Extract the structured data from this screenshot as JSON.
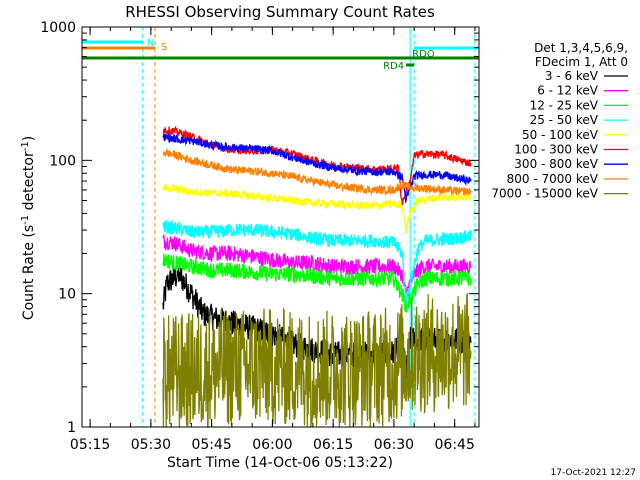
{
  "chart_data": {
    "type": "line",
    "title": "RHESSI Observing Summary Count Rates",
    "xlabel": "Start Time (14-Oct-06 05:13:22)",
    "ylabel_main": "Count Rate (s",
    "ylabel_sup1": "-1",
    "ylabel_mid": " detector",
    "ylabel_sup2": "-1",
    "ylabel_end": ")",
    "y_scale": "log",
    "ylim": [
      1,
      1000
    ],
    "xlim": [
      "05:13",
      "06:51"
    ],
    "x_ticks": [
      {
        "t": "05:15",
        "label": "05:15"
      },
      {
        "t": "05:30",
        "label": "05:30"
      },
      {
        "t": "05:45",
        "label": "05:45"
      },
      {
        "t": "06:00",
        "label": "06:00"
      },
      {
        "t": "06:15",
        "label": "06:15"
      },
      {
        "t": "06:30",
        "label": "06:30"
      },
      {
        "t": "06:45",
        "label": "06:45"
      }
    ],
    "y_ticks": [
      {
        "v": 1,
        "label": "1"
      },
      {
        "v": 10,
        "label": "10"
      },
      {
        "v": 100,
        "label": "100"
      },
      {
        "v": 1000,
        "label": "1000"
      }
    ],
    "legend": {
      "header": [
        "Det 1,3,4,5,6,9,",
        "FDecim 1, Att 0"
      ],
      "placement": "right"
    },
    "series": [
      {
        "name": "3 - 6 keV",
        "color": "#000000",
        "noise": 0.1,
        "points": [
          [
            "05:33",
            8
          ],
          [
            "05:34",
            12
          ],
          [
            "05:37",
            14
          ],
          [
            "05:40",
            10
          ],
          [
            "05:43",
            7
          ],
          [
            "05:46",
            6.5
          ],
          [
            "05:50",
            6
          ],
          [
            "05:55",
            5.5
          ],
          [
            "06:00",
            5
          ],
          [
            "06:05",
            4.2
          ],
          [
            "06:10",
            3.8
          ],
          [
            "06:15",
            3.5
          ],
          [
            "06:20",
            3.5
          ],
          [
            "06:25",
            3.5
          ],
          [
            "06:30",
            3.6
          ],
          [
            "06:32",
            4
          ],
          [
            "06:33",
            2.5
          ],
          [
            "06:34",
            4.5
          ],
          [
            "06:37",
            4.5
          ],
          [
            "06:45",
            4.5
          ],
          [
            "06:49",
            4.3
          ]
        ]
      },
      {
        "name": "6 - 12 keV",
        "color": "#ff00ff",
        "noise": 0.06,
        "points": [
          [
            "05:33",
            25
          ],
          [
            "05:36",
            24
          ],
          [
            "05:40",
            21
          ],
          [
            "05:45",
            20
          ],
          [
            "05:50",
            20
          ],
          [
            "05:55",
            19
          ],
          [
            "06:00",
            18
          ],
          [
            "06:05",
            17
          ],
          [
            "06:10",
            17
          ],
          [
            "06:15",
            16
          ],
          [
            "06:20",
            16
          ],
          [
            "06:25",
            16
          ],
          [
            "06:30",
            16
          ],
          [
            "06:32",
            14
          ],
          [
            "06:33",
            10
          ],
          [
            "06:35",
            14
          ],
          [
            "06:37",
            16
          ],
          [
            "06:45",
            16
          ],
          [
            "06:49",
            16
          ]
        ]
      },
      {
        "name": "12 - 25 keV",
        "color": "#00ff00",
        "noise": 0.06,
        "points": [
          [
            "05:33",
            18
          ],
          [
            "05:36",
            17
          ],
          [
            "05:40",
            16
          ],
          [
            "05:45",
            15
          ],
          [
            "05:50",
            15
          ],
          [
            "05:55",
            14.5
          ],
          [
            "06:00",
            14
          ],
          [
            "06:05",
            14
          ],
          [
            "06:10",
            13.5
          ],
          [
            "06:15",
            13
          ],
          [
            "06:20",
            13
          ],
          [
            "06:25",
            13
          ],
          [
            "06:30",
            13
          ],
          [
            "06:32",
            10
          ],
          [
            "06:33",
            8
          ],
          [
            "06:34",
            9
          ],
          [
            "06:36",
            12
          ],
          [
            "06:38",
            13
          ],
          [
            "06:45",
            13
          ],
          [
            "06:49",
            13
          ]
        ]
      },
      {
        "name": "25 - 50 keV",
        "color": "#00ffff",
        "noise": 0.05,
        "points": [
          [
            "05:33",
            32
          ],
          [
            "05:36",
            31
          ],
          [
            "05:40",
            29
          ],
          [
            "05:45",
            29
          ],
          [
            "05:50",
            30
          ],
          [
            "05:55",
            30
          ],
          [
            "06:00",
            29
          ],
          [
            "06:05",
            28
          ],
          [
            "06:10",
            26
          ],
          [
            "06:15",
            25
          ],
          [
            "06:20",
            25
          ],
          [
            "06:25",
            25
          ],
          [
            "06:30",
            24
          ],
          [
            "06:32",
            20
          ],
          [
            "06:33",
            9
          ],
          [
            "06:34",
            12
          ],
          [
            "06:36",
            22
          ],
          [
            "06:38",
            25
          ],
          [
            "06:45",
            26
          ],
          [
            "06:49",
            27
          ]
        ]
      },
      {
        "name": "50 - 100 keV",
        "color": "#ffff00",
        "noise": 0.03,
        "points": [
          [
            "05:33",
            62
          ],
          [
            "05:36",
            61
          ],
          [
            "05:40",
            58
          ],
          [
            "05:45",
            57
          ],
          [
            "05:50",
            56
          ],
          [
            "05:55",
            54
          ],
          [
            "06:00",
            52
          ],
          [
            "06:05",
            50
          ],
          [
            "06:10",
            48
          ],
          [
            "06:15",
            47
          ],
          [
            "06:20",
            46
          ],
          [
            "06:25",
            46
          ],
          [
            "06:30",
            47
          ],
          [
            "06:32",
            46
          ],
          [
            "06:33",
            30
          ],
          [
            "06:34",
            40
          ],
          [
            "06:36",
            50
          ],
          [
            "06:40",
            52
          ],
          [
            "06:45",
            53
          ],
          [
            "06:49",
            53
          ]
        ]
      },
      {
        "name": "100 - 300 keV",
        "color": "#ff0000",
        "noise": 0.03,
        "points": [
          [
            "05:33",
            170
          ],
          [
            "05:36",
            165
          ],
          [
            "05:40",
            150
          ],
          [
            "05:45",
            130
          ],
          [
            "05:50",
            120
          ],
          [
            "05:55",
            118
          ],
          [
            "06:00",
            120
          ],
          [
            "06:05",
            112
          ],
          [
            "06:10",
            100
          ],
          [
            "06:15",
            92
          ],
          [
            "06:20",
            88
          ],
          [
            "06:25",
            86
          ],
          [
            "06:30",
            86
          ],
          [
            "06:31",
            92
          ],
          [
            "06:32",
            48
          ],
          [
            "06:34",
            70
          ],
          [
            "06:35",
            108
          ],
          [
            "06:37",
            112
          ],
          [
            "06:42",
            110
          ],
          [
            "06:45",
            103
          ],
          [
            "06:49",
            95
          ]
        ]
      },
      {
        "name": "300 - 800 keV",
        "color": "#0000ff",
        "noise": 0.03,
        "points": [
          [
            "05:33",
            150
          ],
          [
            "05:36",
            145
          ],
          [
            "05:40",
            140
          ],
          [
            "05:45",
            130
          ],
          [
            "05:50",
            125
          ],
          [
            "05:55",
            122
          ],
          [
            "06:00",
            118
          ],
          [
            "06:05",
            105
          ],
          [
            "06:10",
            95
          ],
          [
            "06:15",
            88
          ],
          [
            "06:20",
            84
          ],
          [
            "06:25",
            82
          ],
          [
            "06:30",
            82
          ],
          [
            "06:32",
            75
          ],
          [
            "06:33",
            50
          ],
          [
            "06:35",
            76
          ],
          [
            "06:37",
            78
          ],
          [
            "06:42",
            78
          ],
          [
            "06:45",
            74
          ],
          [
            "06:49",
            70
          ]
        ]
      },
      {
        "name": "800 - 7000 keV",
        "color": "#ff8000",
        "noise": 0.03,
        "points": [
          [
            "05:33",
            115
          ],
          [
            "05:36",
            110
          ],
          [
            "05:40",
            100
          ],
          [
            "05:45",
            92
          ],
          [
            "05:50",
            85
          ],
          [
            "05:55",
            83
          ],
          [
            "06:00",
            80
          ],
          [
            "06:05",
            75
          ],
          [
            "06:10",
            70
          ],
          [
            "06:15",
            65
          ],
          [
            "06:20",
            62
          ],
          [
            "06:25",
            60
          ],
          [
            "06:30",
            60
          ],
          [
            "06:32",
            65
          ],
          [
            "06:33",
            64
          ],
          [
            "06:35",
            62
          ],
          [
            "06:37",
            62
          ],
          [
            "06:42",
            60
          ],
          [
            "06:45",
            59
          ],
          [
            "06:49",
            58
          ]
        ]
      },
      {
        "name": "7000 - 15000 keV",
        "color": "#808000",
        "noise": 0.45,
        "points": [
          [
            "05:33",
            2.5
          ],
          [
            "05:40",
            2.6
          ],
          [
            "05:45",
            2.7
          ],
          [
            "05:50",
            2.8
          ],
          [
            "06:00",
            2.8
          ],
          [
            "06:10",
            2.7
          ],
          [
            "06:20",
            2.7
          ],
          [
            "06:30",
            2.9
          ],
          [
            "06:35",
            3.5
          ],
          [
            "06:42",
            3.6
          ],
          [
            "06:49",
            3.7
          ]
        ]
      }
    ],
    "markers": [
      {
        "label": "N",
        "color": "#00ffff",
        "start": "05:13",
        "end": "05:28"
      },
      {
        "label": "S",
        "color": "#ff8000",
        "start": "05:13",
        "end": "05:31"
      },
      {
        "label": "",
        "color": "#00ffff",
        "start": "06:35",
        "end": "06:51"
      },
      {
        "label": "",
        "color": "#008000",
        "start": "05:13",
        "end": "06:51"
      },
      {
        "label": "RD4",
        "color": "#008000",
        "start": "06:33",
        "end": "06:35"
      },
      {
        "label": "RDO",
        "color": "#008000",
        "start": "06:33",
        "end": "06:35"
      }
    ],
    "vertical_lines": [
      {
        "t": "05:13",
        "color": "#00ffff",
        "style": "solid"
      },
      {
        "t": "05:28",
        "color": "#00ffff",
        "style": "dashed"
      },
      {
        "t": "05:31",
        "color": "#ff8000",
        "style": "dashed"
      },
      {
        "t": "06:34",
        "color": "#00ffff",
        "style": "solid"
      },
      {
        "t": "06:35",
        "color": "#00ffff",
        "style": "dashed"
      },
      {
        "t": "06:50",
        "color": "#00ffff",
        "style": "dashed"
      }
    ]
  },
  "footer_date": "17-Oct-2021 12:27"
}
